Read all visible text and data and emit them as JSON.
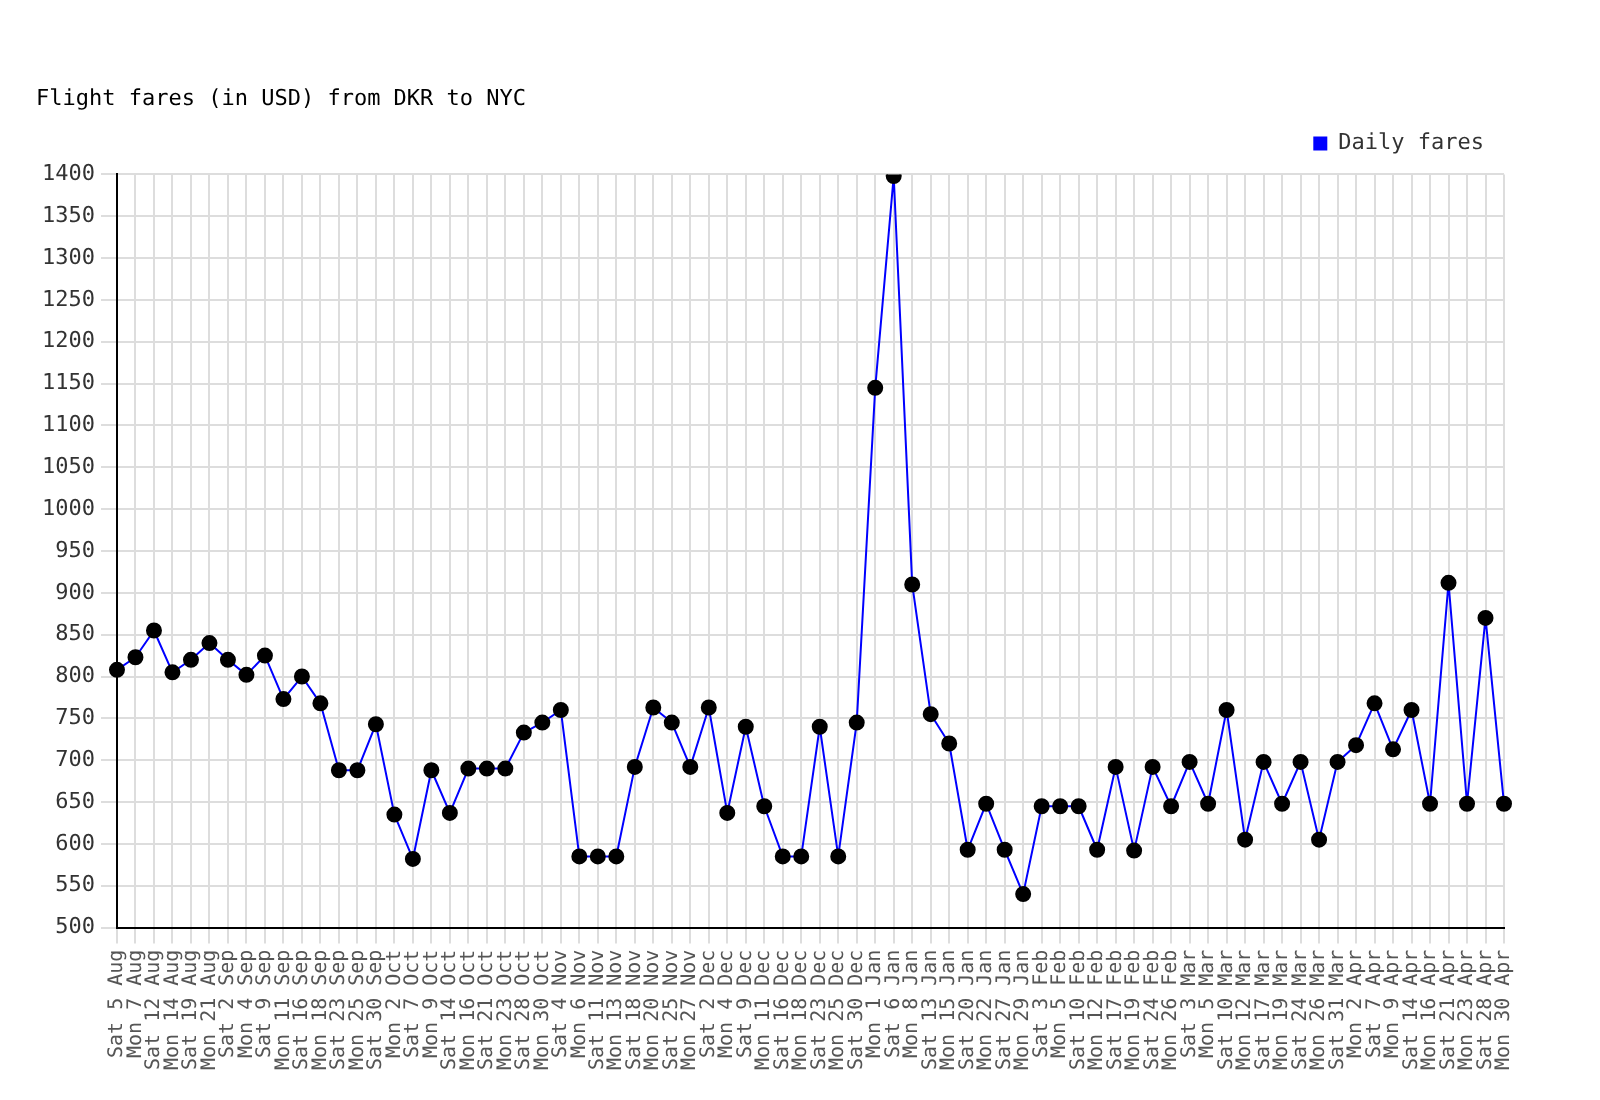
{
  "chart_data": {
    "type": "line",
    "title": "Flight fares (in USD) from DKR to NYC",
    "categories": [
      "Sat 5 Aug",
      "Mon 7 Aug",
      "Sat 12 Aug",
      "Mon 14 Aug",
      "Sat 19 Aug",
      "Mon 21 Aug",
      "Sat 2 Sep",
      "Mon 4 Sep",
      "Sat 9 Sep",
      "Mon 11 Sep",
      "Sat 16 Sep",
      "Mon 18 Sep",
      "Sat 23 Sep",
      "Mon 25 Sep",
      "Sat 30 Sep",
      "Mon 2 Oct",
      "Sat 7 Oct",
      "Mon 9 Oct",
      "Sat 14 Oct",
      "Mon 16 Oct",
      "Sat 21 Oct",
      "Mon 23 Oct",
      "Sat 28 Oct",
      "Mon 30 Oct",
      "Sat 4 Nov",
      "Mon 6 Nov",
      "Sat 11 Nov",
      "Mon 13 Nov",
      "Sat 18 Nov",
      "Mon 20 Nov",
      "Sat 25 Nov",
      "Mon 27 Nov",
      "Sat 2 Dec",
      "Mon 4 Dec",
      "Sat 9 Dec",
      "Mon 11 Dec",
      "Sat 16 Dec",
      "Mon 18 Dec",
      "Sat 23 Dec",
      "Mon 25 Dec",
      "Sat 30 Dec",
      "Mon 1 Jan",
      "Sat 6 Jan",
      "Mon 8 Jan",
      "Sat 13 Jan",
      "Mon 15 Jan",
      "Sat 20 Jan",
      "Mon 22 Jan",
      "Sat 27 Jan",
      "Mon 29 Jan",
      "Sat 3 Feb",
      "Mon 5 Feb",
      "Sat 10 Feb",
      "Mon 12 Feb",
      "Sat 17 Feb",
      "Mon 19 Feb",
      "Sat 24 Feb",
      "Mon 26 Feb",
      "Sat 3 Mar",
      "Mon 5 Mar",
      "Sat 10 Mar",
      "Mon 12 Mar",
      "Sat 17 Mar",
      "Mon 19 Mar",
      "Sat 24 Mar",
      "Mon 26 Mar",
      "Sat 31 Mar",
      "Mon 2 Apr",
      "Sat 7 Apr",
      "Mon 9 Apr",
      "Sat 14 Apr",
      "Mon 16 Apr",
      "Sat 21 Apr",
      "Mon 23 Apr",
      "Sat 28 Apr",
      "Mon 30 Apr"
    ],
    "series": [
      {
        "name": "Daily fares",
        "color": "#0000ff",
        "values": [
          808,
          823,
          855,
          805,
          820,
          840,
          820,
          802,
          825,
          773,
          800,
          768,
          688,
          688,
          743,
          635,
          582,
          688,
          637,
          690,
          690,
          690,
          733,
          745,
          760,
          585,
          585,
          585,
          692,
          763,
          745,
          692,
          763,
          637,
          740,
          645,
          585,
          585,
          740,
          585,
          745,
          1145,
          1398,
          910,
          755,
          720,
          593,
          648,
          593,
          540,
          645,
          645,
          645,
          593,
          692,
          592,
          692,
          645,
          698,
          648,
          760,
          605,
          698,
          648,
          698,
          605,
          698,
          718,
          768,
          713,
          760,
          648,
          912,
          648,
          870,
          648
        ]
      }
    ],
    "ylim": [
      500,
      1400
    ],
    "yticks": [
      500,
      550,
      600,
      650,
      700,
      750,
      800,
      850,
      900,
      950,
      1000,
      1050,
      1100,
      1150,
      1200,
      1250,
      1300,
      1350,
      1400
    ],
    "grid": true,
    "legend": "top right",
    "marker": "circle",
    "line_style": "solid"
  }
}
